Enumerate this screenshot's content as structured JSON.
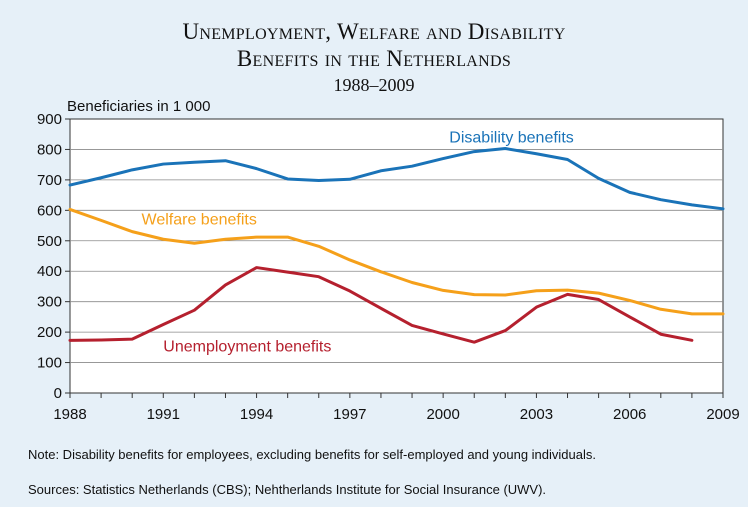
{
  "chart_data": {
    "type": "line",
    "title_line1": "Unemployment, Welfare and Disability",
    "title_line2": "Benefits in the Netherlands",
    "subtitle": "1988–2009",
    "ylabel": "Beneficiaries in 1 000",
    "xlabel": "",
    "xlim": [
      1988,
      2009
    ],
    "ylim": [
      0,
      900
    ],
    "x_ticks": [
      "1988",
      "1991",
      "1994",
      "1997",
      "2000",
      "2003",
      "2006",
      "2009"
    ],
    "y_ticks": [
      "0",
      "100",
      "200",
      "300",
      "400",
      "500",
      "600",
      "700",
      "800",
      "900"
    ],
    "grid": true,
    "legend": "inline labels",
    "x": [
      1988,
      1989,
      1990,
      1991,
      1992,
      1993,
      1994,
      1995,
      1996,
      1997,
      1998,
      1999,
      2000,
      2001,
      2002,
      2003,
      2004,
      2005,
      2006,
      2007,
      2008,
      2009
    ],
    "series": [
      {
        "name": "Disability benefits",
        "color": "#1a73b8",
        "values": [
          683,
          707,
          733,
          752,
          758,
          763,
          737,
          703,
          698,
          702,
          730,
          745,
          770,
          793,
          803,
          786,
          767,
          705,
          659,
          635,
          618,
          605
        ]
      },
      {
        "name": "Welfare benefits",
        "color": "#f5a01a",
        "values": [
          603,
          567,
          530,
          505,
          492,
          505,
          512,
          512,
          482,
          437,
          398,
          363,
          337,
          323,
          322,
          336,
          338,
          328,
          304,
          275,
          260,
          260
        ]
      },
      {
        "name": "Unemployment benefits",
        "color": "#b5202e",
        "values": [
          173,
          174,
          177,
          225,
          272,
          355,
          412,
          397,
          382,
          335,
          278,
          222,
          194,
          167,
          205,
          282,
          324,
          307,
          250,
          193,
          173,
          null
        ]
      }
    ]
  },
  "note": "Note: Disability benefits for employees, excluding benefits for self-employed and young individuals.",
  "sources": "Sources: Statistics Netherlands (CBS); Nehtherlands Institute for Social Insurance (UWV)."
}
